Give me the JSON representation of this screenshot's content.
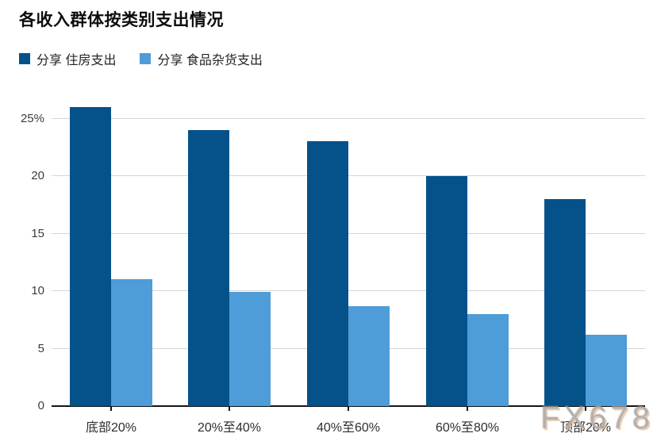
{
  "title": "各收入群体按类别支出情况",
  "watermark": "FX678",
  "legend": {
    "housing_label": "分享 住房支出",
    "groceries_label": "分享 食品杂货支出"
  },
  "colors": {
    "housing": "#05518a",
    "groceries": "#4e9cd8",
    "gridline": "#d5d5d5",
    "axis": "#141414"
  },
  "chart_data": {
    "type": "bar",
    "title": "各收入群体按类别支出情况",
    "categories": [
      "底部20%",
      "20%至40%",
      "40%至60%",
      "60%至80%",
      "顶部20%"
    ],
    "series": [
      {
        "name": "分享 住房支出",
        "color": "#05518a",
        "values": [
          26,
          24,
          23,
          20,
          18
        ]
      },
      {
        "name": "分享 食品杂货支出",
        "color": "#4e9cd8",
        "values": [
          11,
          9.9,
          8.7,
          8,
          6.2
        ]
      }
    ],
    "xlabel": "",
    "ylabel": "",
    "ylim": [
      0,
      26.2
    ],
    "yticks": [
      {
        "value": 0,
        "label": "0"
      },
      {
        "value": 5,
        "label": "5"
      },
      {
        "value": 10,
        "label": "10"
      },
      {
        "value": 15,
        "label": "15"
      },
      {
        "value": 20,
        "label": "20"
      },
      {
        "value": 25,
        "label": "25%"
      }
    ],
    "grid": true,
    "legend_position": "top-left"
  }
}
